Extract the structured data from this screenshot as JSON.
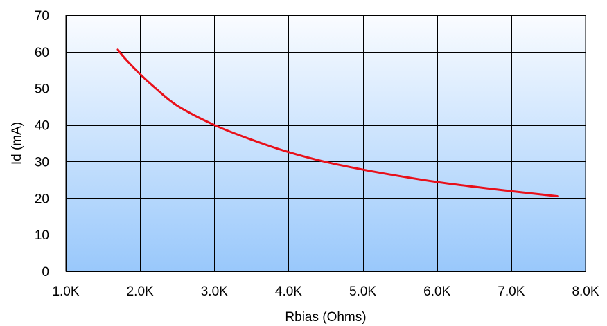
{
  "chart_data": {
    "type": "line",
    "title": "",
    "xlabel": "Rbias (Ohms)",
    "ylabel": "Id (mA)",
    "xlim": [
      1000,
      8000
    ],
    "ylim": [
      0,
      70
    ],
    "x_ticks": [
      1000,
      2000,
      3000,
      4000,
      5000,
      6000,
      7000,
      8000
    ],
    "x_tick_labels": [
      "1.0K",
      "2.0K",
      "3.0K",
      "4.0K",
      "5.0K",
      "6.0K",
      "7.0K",
      "8.0K"
    ],
    "y_ticks": [
      0,
      10,
      20,
      30,
      40,
      50,
      60,
      70
    ],
    "y_tick_labels": [
      "0",
      "10",
      "20",
      "30",
      "40",
      "50",
      "60",
      "70"
    ],
    "grid": true,
    "legend": "none",
    "series": [
      {
        "color": "#e8101a",
        "points": [
          [
            1700,
            60.6
          ],
          [
            1800,
            58.1
          ],
          [
            2000,
            53.9
          ],
          [
            2200,
            50.2
          ],
          [
            2500,
            45.3
          ],
          [
            3000,
            40.0
          ],
          [
            3500,
            36.0
          ],
          [
            4000,
            32.6
          ],
          [
            4500,
            29.9
          ],
          [
            5000,
            27.8
          ],
          [
            5500,
            26.0
          ],
          [
            6000,
            24.4
          ],
          [
            6500,
            23.1
          ],
          [
            7000,
            21.9
          ],
          [
            7630,
            20.5
          ]
        ]
      }
    ],
    "plot_gradient": {
      "top": "#fafcff",
      "bottom": "#99c8fb"
    }
  }
}
